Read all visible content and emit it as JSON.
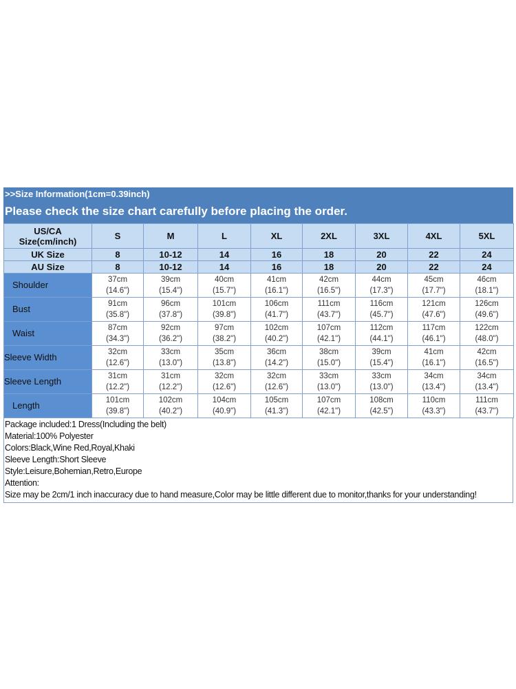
{
  "title_bar": ">>Size Information(1cm=0.39inch)",
  "subtitle_bar": "Please check the size chart carefully before placing the order.",
  "header": {
    "us_label": [
      "US/CA",
      "Size(cm/inch)"
    ],
    "sizes": [
      "S",
      "M",
      "L",
      "XL",
      "2XL",
      "3XL",
      "4XL",
      "5XL"
    ],
    "uk_label": "UK Size",
    "uk": [
      "8",
      "10-12",
      "14",
      "16",
      "18",
      "20",
      "22",
      "24"
    ],
    "au_label": "AU Size",
    "au": [
      "8",
      "10-12",
      "14",
      "16",
      "18",
      "20",
      "22",
      "24"
    ]
  },
  "rows": [
    {
      "label": "Shoulder",
      "cm": [
        "37cm",
        "39cm",
        "40cm",
        "41cm",
        "42cm",
        "44cm",
        "45cm",
        "46cm"
      ],
      "in": [
        "(14.6\")",
        "(15.4\")",
        "(15.7\")",
        "(16.1\")",
        "(16.5\")",
        "(17.3\")",
        "(17.7\")",
        "(18.1\")"
      ]
    },
    {
      "label": "Bust",
      "cm": [
        "91cm",
        "96cm",
        "101cm",
        "106cm",
        "111cm",
        "116cm",
        "121cm",
        "126cm"
      ],
      "in": [
        "(35.8\")",
        "(37.8\")",
        "(39.8\")",
        "(41.7\")",
        "(43.7\")",
        "(45.7\")",
        "(47.6\")",
        "(49.6\")"
      ]
    },
    {
      "label": "Waist",
      "cm": [
        "87cm",
        "92cm",
        "97cm",
        "102cm",
        "107cm",
        "112cm",
        "117cm",
        "122cm"
      ],
      "in": [
        "(34.3\")",
        "(36.2\")",
        "(38.2\")",
        "(40.2\")",
        "(42.1\")",
        "(44.1\")",
        "(46.1\")",
        "(48.0\")"
      ]
    },
    {
      "label": "Sleeve Width",
      "cm": [
        "32cm",
        "33cm",
        "35cm",
        "36cm",
        "38cm",
        "39cm",
        "41cm",
        "42cm"
      ],
      "in": [
        "(12.6\")",
        "(13.0\")",
        "(13.8\")",
        "(14.2\")",
        "(15.0\")",
        "(15.4\")",
        "(16.1\")",
        "(16.5\")"
      ]
    },
    {
      "label": "Sleeve Length",
      "cm": [
        "31cm",
        "31cm",
        "32cm",
        "32cm",
        "33cm",
        "33cm",
        "34cm",
        "34cm"
      ],
      "in": [
        "(12.2\")",
        "(12.2\")",
        "(12.6\")",
        "(12.6\")",
        "(13.0\")",
        "(13.0\")",
        "(13.4\")",
        "(13.4\")"
      ]
    },
    {
      "label": "Length",
      "cm": [
        "101cm",
        "102cm",
        "104cm",
        "105cm",
        "107cm",
        "108cm",
        "110cm",
        "111cm"
      ],
      "in": [
        "(39.8\")",
        "(40.2\")",
        "(40.9\")",
        "(41.3\")",
        "(42.1\")",
        "(42.5\")",
        "(43.3\")",
        "(43.7\")"
      ]
    }
  ],
  "notes": [
    "Package included:1 Dress(Including the belt)",
    "Material:100% Polyester",
    "Colors:Black,Wine Red,Royal,Khaki",
    "Sleeve Length:Short Sleeve",
    "Style:Leisure,Bohemian,Retro,Europe",
    "Attention:",
    "Size may be 2cm/1  inch inaccuracy due to hand measure,Color may be little different due to monitor,thanks for your understanding!"
  ]
}
